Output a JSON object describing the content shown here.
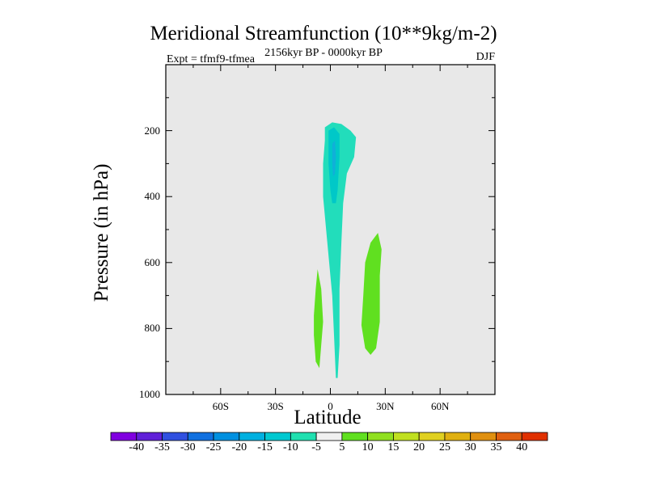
{
  "chart_data": {
    "type": "contour",
    "title": "Meridional Streamfunction (10**9kg/m-2)",
    "subtitle_left": "Expt = tfmf9-tfmea",
    "subtitle_center": "2156kyr BP - 0000kyr BP",
    "subtitle_right": "DJF",
    "xlabel": "Latitude",
    "ylabel": "Pressure (in hPa)",
    "xlim": [
      -90,
      90
    ],
    "ylim": [
      0,
      1000
    ],
    "y_inverted": true,
    "x_ticks": [
      {
        "value": -60,
        "label": "60S"
      },
      {
        "value": -30,
        "label": "30S"
      },
      {
        "value": 0,
        "label": "0"
      },
      {
        "value": 30,
        "label": "30N"
      },
      {
        "value": 60,
        "label": "60N"
      }
    ],
    "y_ticks": [
      {
        "value": 200,
        "label": "200"
      },
      {
        "value": 400,
        "label": "400"
      },
      {
        "value": 600,
        "label": "600"
      },
      {
        "value": 800,
        "label": "800"
      },
      {
        "value": 1000,
        "label": "1000"
      }
    ],
    "background_color": "#e8e8e8",
    "regions": [
      {
        "name": "negative-cell-core",
        "level": "-5 to -10",
        "color": "#22ddbb",
        "points": [
          [
            -3,
            190
          ],
          [
            1,
            175
          ],
          [
            6,
            180
          ],
          [
            11,
            200
          ],
          [
            14,
            220
          ],
          [
            13,
            280
          ],
          [
            9,
            330
          ],
          [
            7,
            420
          ],
          [
            6,
            540
          ],
          [
            5,
            680
          ],
          [
            5,
            850
          ],
          [
            4,
            950
          ],
          [
            3,
            950
          ],
          [
            2,
            820
          ],
          [
            1,
            700
          ],
          [
            0,
            640
          ],
          [
            -2,
            520
          ],
          [
            -4,
            400
          ],
          [
            -4,
            300
          ],
          [
            -3,
            230
          ]
        ]
      },
      {
        "name": "negative-cell-inner",
        "level": "-10 to -15",
        "color": "#00c8c8",
        "points": [
          [
            -1,
            200
          ],
          [
            2,
            190
          ],
          [
            5,
            210
          ],
          [
            5,
            280
          ],
          [
            4,
            380
          ],
          [
            3,
            420
          ],
          [
            1,
            420
          ],
          [
            0,
            380
          ],
          [
            -1,
            300
          ]
        ]
      },
      {
        "name": "negative-cell-innermost",
        "level": "-15 to -20",
        "color": "#10b0d8",
        "points": [
          [
            1,
            240
          ],
          [
            2.5,
            230
          ],
          [
            3,
            280
          ],
          [
            2.5,
            330
          ],
          [
            1.5,
            340
          ],
          [
            1,
            300
          ]
        ]
      },
      {
        "name": "positive-cell-sh",
        "level": "5 to 10",
        "color": "#60e020",
        "points": [
          [
            -7,
            620
          ],
          [
            -5,
            680
          ],
          [
            -4,
            780
          ],
          [
            -5,
            850
          ],
          [
            -6,
            920
          ],
          [
            -8,
            900
          ],
          [
            -9,
            820
          ],
          [
            -9,
            760
          ],
          [
            -8,
            680
          ]
        ]
      },
      {
        "name": "positive-cell-nh",
        "level": "5 to 10",
        "color": "#60e020",
        "points": [
          [
            26,
            510
          ],
          [
            28,
            560
          ],
          [
            27,
            640
          ],
          [
            27,
            780
          ],
          [
            25,
            860
          ],
          [
            22,
            880
          ],
          [
            19,
            860
          ],
          [
            17,
            790
          ],
          [
            18,
            700
          ],
          [
            19,
            600
          ],
          [
            22,
            540
          ]
        ]
      }
    ],
    "colorbar": {
      "labels": [
        "-40",
        "-35",
        "-30",
        "-25",
        "-20",
        "-15",
        "-10",
        "-5",
        "5",
        "10",
        "15",
        "20",
        "25",
        "30",
        "35",
        "40"
      ],
      "colors": [
        "#8000e0",
        "#6020d8",
        "#3050e0",
        "#1070e0",
        "#0090e0",
        "#00b0e0",
        "#00c8d0",
        "#20e0b0",
        "#f0f0f0",
        "#60e020",
        "#90e020",
        "#c0e020",
        "#e0d020",
        "#e0b010",
        "#e09010",
        "#e06010",
        "#e03000"
      ]
    }
  }
}
